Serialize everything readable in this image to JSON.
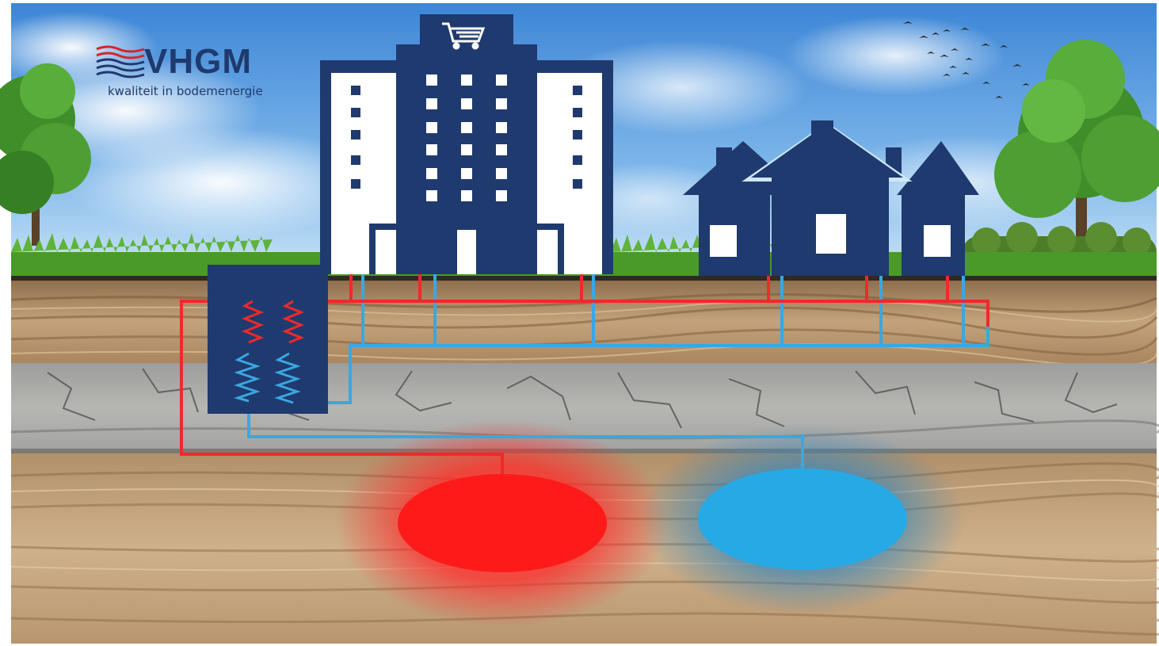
{
  "logo": {
    "wordmark": "VHGM",
    "tagline": "kwaliteit in bodemenergie"
  },
  "colors": {
    "sky_top": "#3d86d6",
    "sky_bottom": "#bfe0f6",
    "navy": "#1f3a6e",
    "hot": "#ff1a1a",
    "hot_pipe": "#ee2a2a",
    "cold": "#27a9e6",
    "cold_pipe": "#3aa7e0",
    "topsoil": "#b89670",
    "clay": "#a9a9a7",
    "sand": "#c4a47d",
    "grass": "#4a9a2a",
    "tree": "#3f8e2a"
  },
  "icons": {
    "shop": "cart-icon",
    "birds": "birds-flock-icon"
  },
  "diagram": {
    "elements": [
      "shopping-building",
      "houses",
      "heat-exchanger",
      "warm-well",
      "cold-well",
      "supply-pipes",
      "return-pipes"
    ]
  }
}
